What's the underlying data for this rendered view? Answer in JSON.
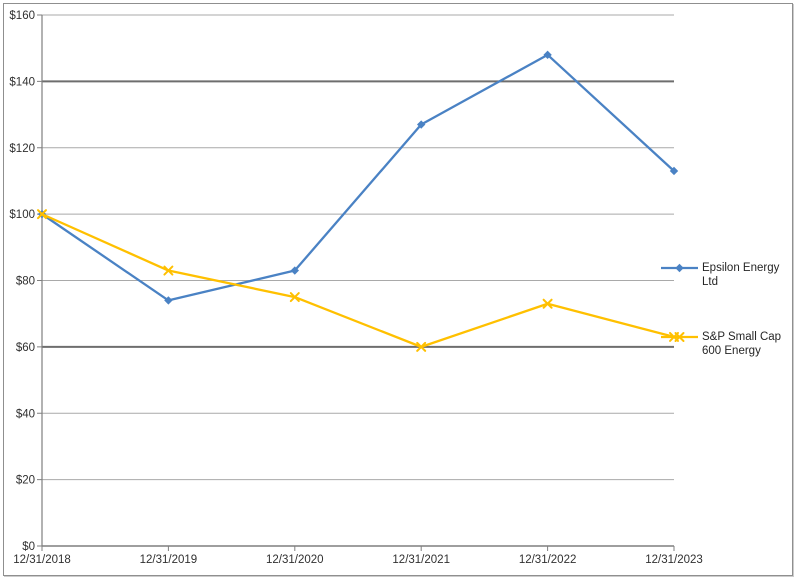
{
  "window": {
    "title": "Stock performance comparison chart"
  },
  "chart_data": {
    "type": "line",
    "title": "",
    "xlabel": "",
    "ylabel": "",
    "categories": [
      "12/31/2018",
      "12/31/2019",
      "12/31/2020",
      "12/31/2021",
      "12/31/2022",
      "12/31/2023"
    ],
    "series": [
      {
        "name": "Epsilon Energy Ltd",
        "color": "#4a82c4",
        "marker": "diamond",
        "values": [
          100,
          74,
          83,
          127,
          148,
          113
        ]
      },
      {
        "name": "S&P Small Cap 600 Energy",
        "color": "#ffc000",
        "marker": "x",
        "values": [
          100,
          83,
          75,
          60,
          73,
          63
        ]
      }
    ],
    "y_axis": {
      "min": 0,
      "max": 160,
      "step": 20,
      "tick_prefix": "$",
      "dark_gridlines": [
        60,
        140
      ]
    },
    "x_axis": {
      "tick_labels": [
        "12/31/2018",
        "12/31/2019",
        "12/31/2020",
        "12/31/2021",
        "12/31/2022",
        "12/31/2023"
      ]
    },
    "grid": true,
    "legend_position": "right",
    "colors": {
      "grid_light": "#a9a9a9",
      "grid_dark": "#6e6e6e",
      "axis": "#7f7f7f",
      "text": "#303030",
      "background": "#ffffff",
      "border": "#8f8f8f"
    }
  }
}
